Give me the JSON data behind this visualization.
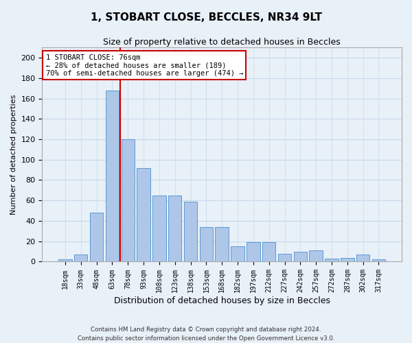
{
  "title1": "1, STOBART CLOSE, BECCLES, NR34 9LT",
  "title2": "Size of property relative to detached houses in Beccles",
  "xlabel": "Distribution of detached houses by size in Beccles",
  "ylabel": "Number of detached properties",
  "categories": [
    "18sqm",
    "33sqm",
    "48sqm",
    "63sqm",
    "78sqm",
    "93sqm",
    "108sqm",
    "123sqm",
    "138sqm",
    "153sqm",
    "168sqm",
    "182sqm",
    "197sqm",
    "212sqm",
    "227sqm",
    "242sqm",
    "257sqm",
    "272sqm",
    "287sqm",
    "302sqm",
    "317sqm"
  ],
  "values": [
    2,
    7,
    48,
    168,
    120,
    92,
    65,
    65,
    59,
    34,
    34,
    15,
    19,
    19,
    8,
    10,
    11,
    3,
    4,
    7,
    2
  ],
  "bar_color": "#aec6e8",
  "bar_edge_color": "#5b9bd5",
  "highlight_line_color": "#cc0000",
  "annotation_text": "1 STOBART CLOSE: 76sqm\n← 28% of detached houses are smaller (189)\n70% of semi-detached houses are larger (474) →",
  "annotation_box_color": "#ffffff",
  "annotation_box_edge": "#cc0000",
  "ylim": [
    0,
    210
  ],
  "yticks": [
    0,
    20,
    40,
    60,
    80,
    100,
    120,
    140,
    160,
    180,
    200
  ],
  "grid_color": "#c8d8e8",
  "background_color": "#e8f0f8",
  "footer1": "Contains HM Land Registry data © Crown copyright and database right 2024.",
  "footer2": "Contains public sector information licensed under the Open Government Licence v3.0."
}
